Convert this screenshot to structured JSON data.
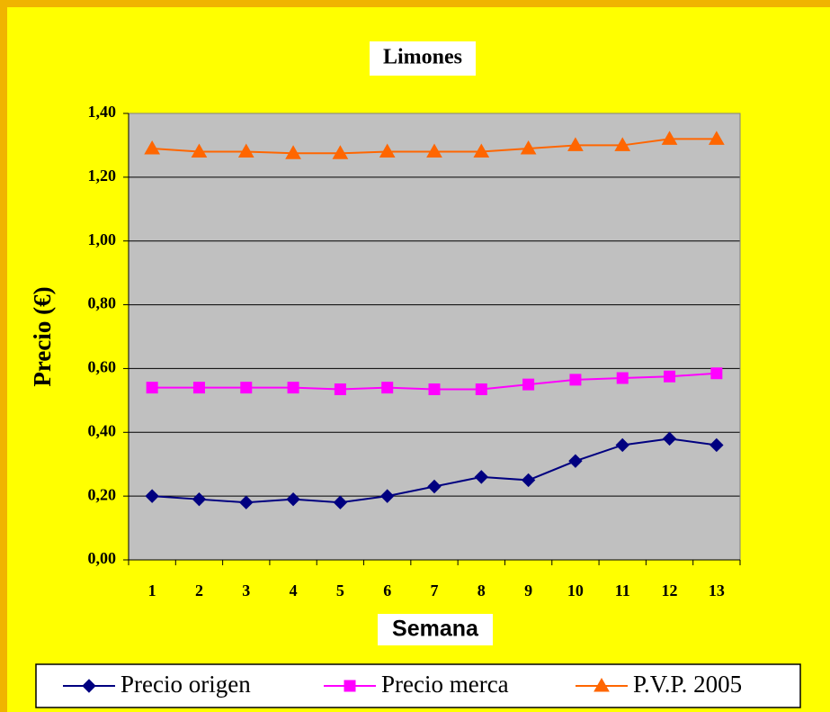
{
  "chart_data": {
    "type": "line",
    "title": "Limones",
    "x_label": "Semana",
    "y_label": "Precio (€)",
    "categories": [
      "1",
      "2",
      "3",
      "4",
      "5",
      "6",
      "7",
      "8",
      "9",
      "10",
      "11",
      "12",
      "13"
    ],
    "series": [
      {
        "name": "Precio origen",
        "color": "#000080",
        "marker": "diamond",
        "values": [
          0.2,
          0.19,
          0.18,
          0.19,
          0.18,
          0.2,
          0.23,
          0.26,
          0.25,
          0.31,
          0.36,
          0.38,
          0.36
        ]
      },
      {
        "name": "Precio merca",
        "color": "#ff00ff",
        "marker": "square",
        "values": [
          0.54,
          0.54,
          0.54,
          0.54,
          0.535,
          0.54,
          0.535,
          0.535,
          0.55,
          0.565,
          0.57,
          0.575,
          0.585
        ]
      },
      {
        "name": "P.V.P. 2005",
        "color": "#ff6600",
        "marker": "triangle",
        "values": [
          1.29,
          1.28,
          1.28,
          1.275,
          1.275,
          1.28,
          1.28,
          1.28,
          1.29,
          1.3,
          1.3,
          1.32,
          1.32
        ]
      }
    ],
    "ylim": [
      0,
      1.4
    ],
    "yticks": [
      {
        "value": 0,
        "label": "0,00"
      },
      {
        "value": 0.2,
        "label": "0,20"
      },
      {
        "value": 0.4,
        "label": "0,40"
      },
      {
        "value": 0.6,
        "label": "0,60"
      },
      {
        "value": 0.8,
        "label": "0,80"
      },
      {
        "value": 1.0,
        "label": "1,00"
      },
      {
        "value": 1.2,
        "label": "1,20"
      },
      {
        "value": 1.4,
        "label": "1,40"
      }
    ],
    "grid": true,
    "legend": "bottom"
  }
}
